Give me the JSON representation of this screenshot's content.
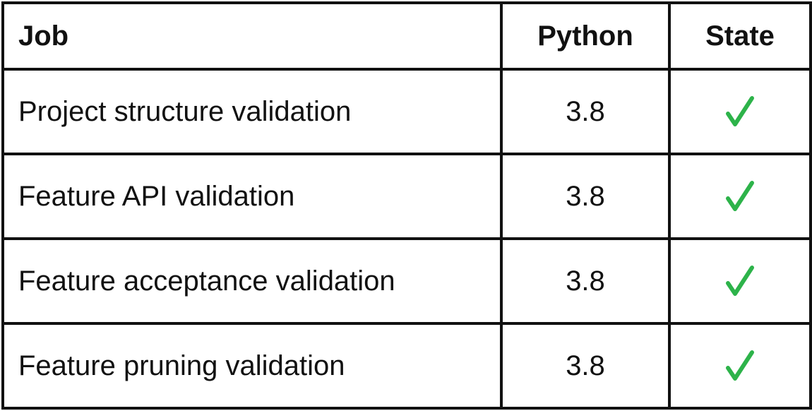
{
  "table": {
    "headers": {
      "job": "Job",
      "python": "Python",
      "state": "State"
    },
    "rows": [
      {
        "job": "Project structure validation",
        "python": "3.8",
        "state": "passed"
      },
      {
        "job": "Feature API validation",
        "python": "3.8",
        "state": "passed"
      },
      {
        "job": "Feature acceptance validation",
        "python": "3.8",
        "state": "passed"
      },
      {
        "job": "Feature pruning validation",
        "python": "3.8",
        "state": "passed"
      }
    ],
    "state_icon": "checkmark-icon",
    "colors": {
      "border": "#111111",
      "check": "#2db34a",
      "text": "#111111"
    }
  }
}
